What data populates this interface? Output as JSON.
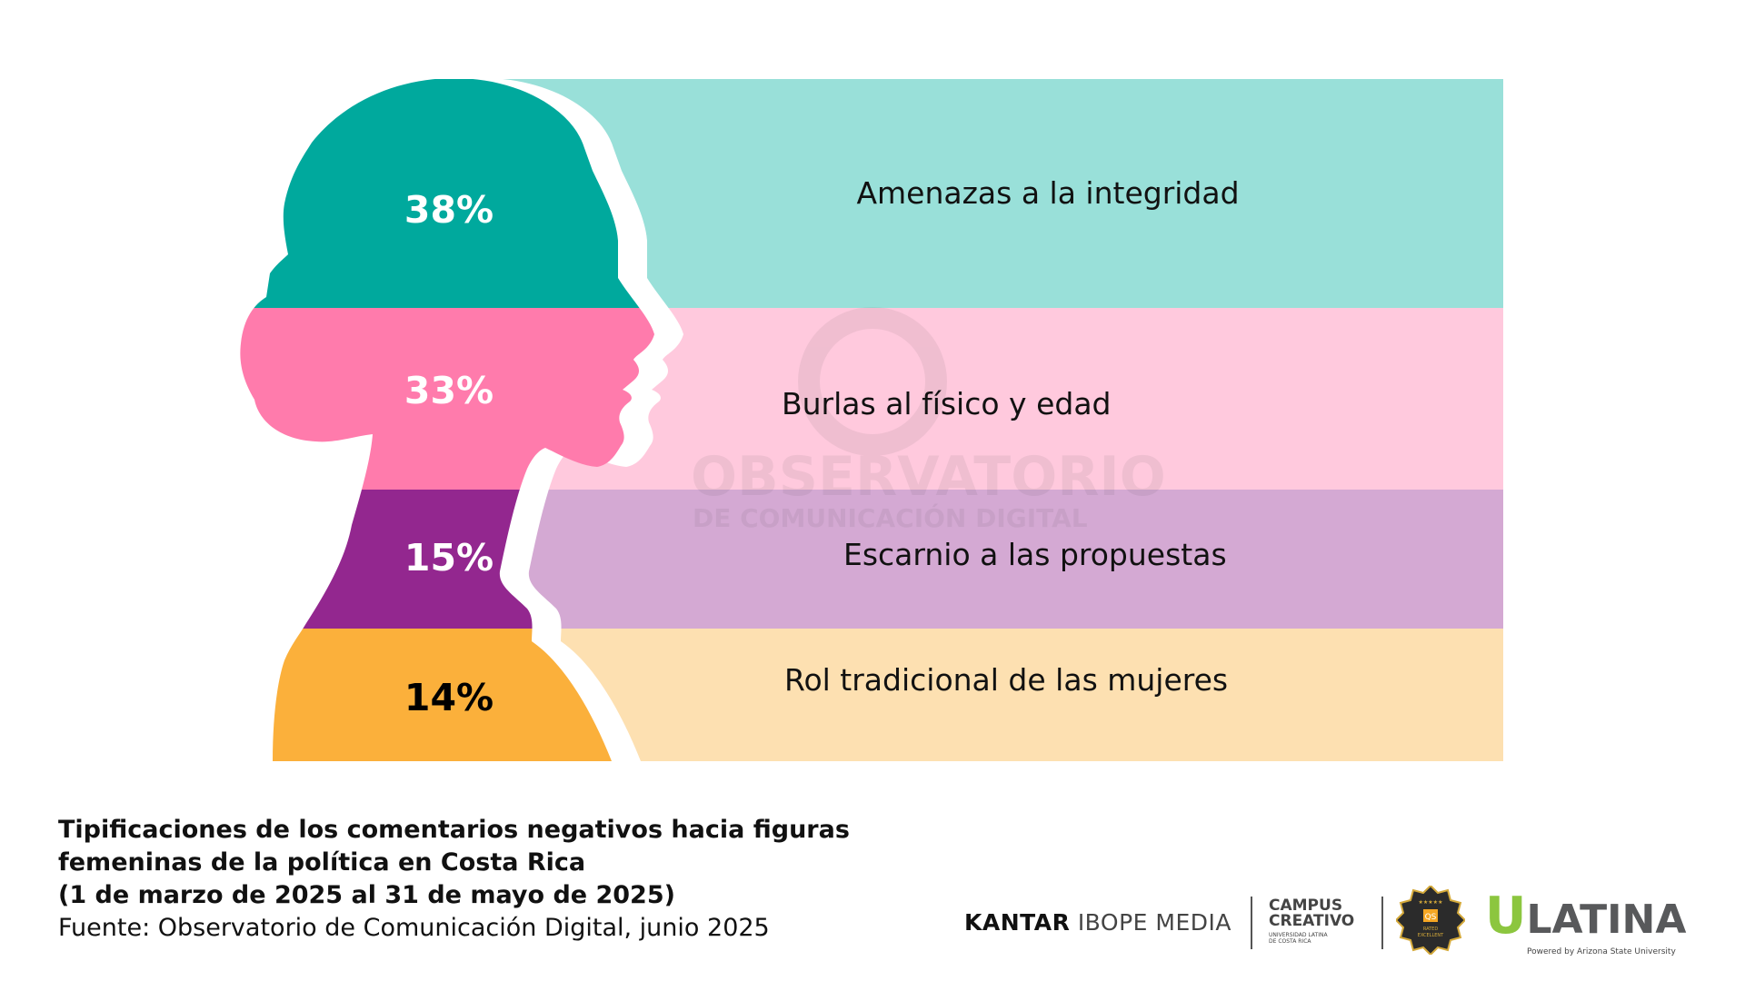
{
  "chart_data": {
    "type": "pie",
    "title": "Tipificaciones de los comentarios negativos hacia figuras femeninas de la política en Costa Rica",
    "period": "(1 de marzo de 2025 al 31 de mayo de 2025)",
    "source": "Fuente: Observatorio de Comunicación Digital, junio 2025",
    "categories": [
      "Amenazas a la integridad",
      "Burlas al físico y edad",
      "Escarnio a las propuestas",
      "Rol tradicional de las mujeres"
    ],
    "values": [
      38,
      33,
      15,
      14
    ],
    "value_labels": [
      "38%",
      "33%",
      "15%",
      "14%"
    ],
    "colors": [
      "#00a99d",
      "#ff7bac",
      "#93278f",
      "#fbb03b"
    ],
    "light_colors": [
      "#99e0d9",
      "#ffc9dd",
      "#d4a9d3",
      "#fde0b1"
    ],
    "label_colors": [
      "#ffffff",
      "#ffffff",
      "#ffffff",
      "#000000"
    ]
  },
  "caption": {
    "title_line1": "Tipificaciones de los comentarios negativos hacia figuras",
    "title_line2": "femeninas de la política en Costa Rica",
    "period": "(1 de marzo de 2025 al 31 de mayo de 2025)",
    "source": "Fuente: Observatorio de Comunicación Digital, junio 2025"
  },
  "watermark": {
    "line1": "OBSERVATORIO",
    "line2": "DE COMUNICACIÓN DIGITAL"
  },
  "logos": {
    "kantar_bold": "KANTAR",
    "kantar_rest": "IBOPE MEDIA",
    "campus_line1": "CAMPUS",
    "campus_line2": "CREATIVO",
    "campus_sub1": "UNIVERSIDAD LATINA",
    "campus_sub2": "DE COSTA RICA",
    "qs_text": "QS",
    "qs_rated": "RATED",
    "qs_excellent": "EXCELLENT",
    "ulatina_u": "U",
    "ulatina_rest": "LATINA",
    "ulatina_powered": "Powered by Arizona State University"
  }
}
